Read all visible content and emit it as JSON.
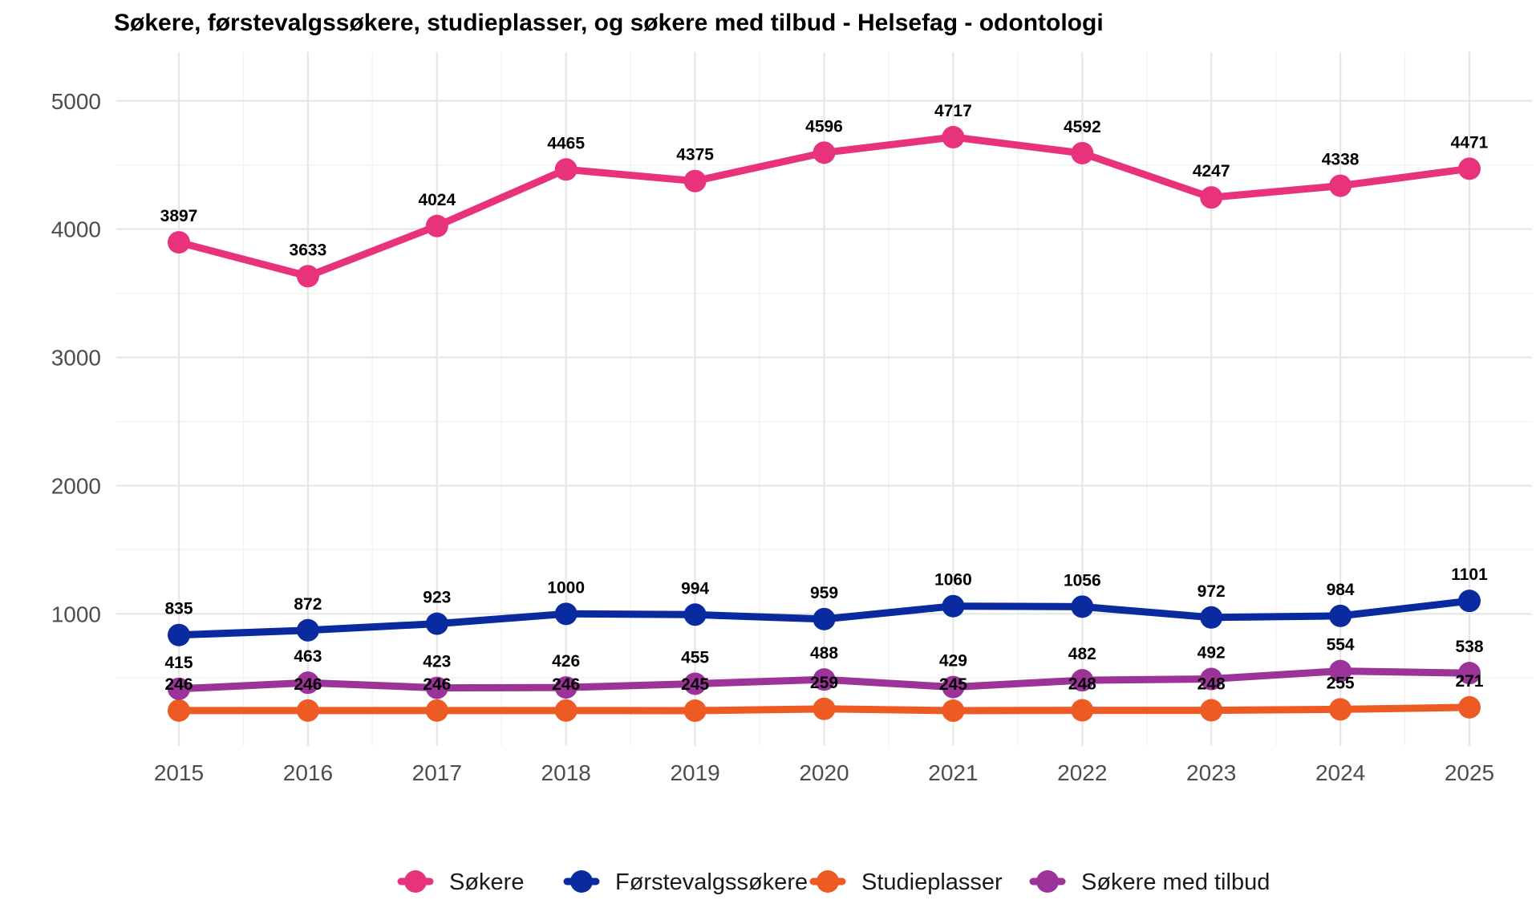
{
  "chart_data": {
    "type": "line",
    "title": "Søkere, førstevalgssøkere, studieplasser, og søkere med tilbud - Helsefag - odontologi",
    "xlabel": "",
    "ylabel": "",
    "x": [
      "2015",
      "2016",
      "2017",
      "2018",
      "2019",
      "2020",
      "2021",
      "2022",
      "2023",
      "2024",
      "2025"
    ],
    "yticks": [
      1000,
      2000,
      3000,
      4000,
      5000
    ],
    "ylim": [
      -30,
      5380
    ],
    "grid": true,
    "legend_position": "bottom",
    "series": [
      {
        "name": "Søkere",
        "color": "#E8327C",
        "values": [
          3897,
          3633,
          4024,
          4465,
          4375,
          4596,
          4717,
          4592,
          4247,
          4338,
          4471
        ]
      },
      {
        "name": "Førstevalgssøkere",
        "color": "#0A2BA0",
        "values": [
          835,
          872,
          923,
          1000,
          994,
          959,
          1060,
          1056,
          972,
          984,
          1101
        ]
      },
      {
        "name": "Studieplasser",
        "color": "#EE5A24",
        "values": [
          246,
          246,
          246,
          246,
          245,
          259,
          245,
          248,
          248,
          255,
          271
        ]
      },
      {
        "name": "Søkere med tilbud",
        "color": "#9B3399",
        "values": [
          415,
          463,
          423,
          426,
          455,
          488,
          429,
          482,
          492,
          554,
          538
        ]
      }
    ]
  }
}
